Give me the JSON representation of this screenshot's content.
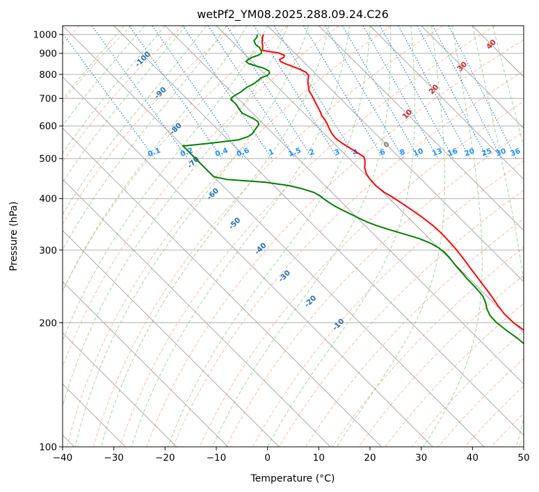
{
  "chart_data": {
    "type": "line",
    "title": "wetPf2_YM08.2025.288.09.24.C26",
    "xlabel": "Temperature (°C)",
    "ylabel": "Pressure (hPa)",
    "xlim": [
      -40,
      50
    ],
    "ylim": [
      1050,
      100
    ],
    "y_scale": "log",
    "grid": true,
    "x_ticks": [
      -40,
      -30,
      -20,
      -10,
      0,
      10,
      20,
      30,
      40,
      50
    ],
    "x_tick_labels": [
      "−40",
      "−30",
      "−20",
      "−10",
      "0",
      "10",
      "20",
      "30",
      "40",
      "50"
    ],
    "y_ticks": [
      100,
      200,
      300,
      400,
      500,
      600,
      700,
      800,
      900,
      1000
    ],
    "y_tick_labels": [
      "100",
      "200",
      "300",
      "400",
      "500",
      "600",
      "700",
      "800",
      "900",
      "1000"
    ],
    "series": [
      {
        "color": "#ff0000",
        "pressure": [
          1000,
          985,
          960,
          935,
          915,
          902,
          890,
          880,
          870,
          860,
          850,
          838,
          825,
          810,
          795,
          785,
          770,
          750,
          730,
          710,
          690,
          670,
          650,
          635,
          620,
          605,
          590,
          575,
          560,
          545,
          530,
          515,
          505,
          495,
          485,
          475,
          460,
          445,
          430,
          415,
          405,
          390,
          375,
          360,
          345,
          330,
          315,
          300,
          285,
          270,
          255,
          240,
          230,
          220,
          210,
          200,
          190,
          180,
          170,
          163,
          157,
          150,
          140,
          130,
          120,
          110,
          100
        ],
        "temperature": [
          -2.5,
          -3.2,
          -4.2,
          -5.0,
          -5.8,
          -3.2,
          -2.5,
          -3.0,
          -4.2,
          -4.5,
          -4.0,
          -3.2,
          -2.3,
          -1.6,
          -1.7,
          -2.2,
          -3.0,
          -3.8,
          -4.6,
          -5.0,
          -5.5,
          -6.0,
          -6.5,
          -7.0,
          -7.2,
          -7.6,
          -8.1,
          -8.5,
          -8.7,
          -8.4,
          -7.8,
          -7.2,
          -6.8,
          -7.3,
          -8.0,
          -8.8,
          -9.6,
          -10.0,
          -10.1,
          -9.8,
          -9.2,
          -8.5,
          -7.8,
          -7.2,
          -6.8,
          -6.6,
          -6.7,
          -6.9,
          -7.3,
          -7.8,
          -8.3,
          -8.8,
          -9.2,
          -9.7,
          -10.1,
          -10.0,
          -9.3,
          -8.0,
          -6.0,
          -4.6,
          -4.1,
          -3.8,
          -3.6,
          -3.4,
          -3.0,
          -2.5,
          -2.3
        ]
      },
      {
        "color": "#008000",
        "pressure": [
          1000,
          985,
          965,
          945,
          930,
          920,
          910,
          900,
          890,
          880,
          870,
          860,
          850,
          840,
          828,
          815,
          805,
          795,
          785,
          775,
          765,
          755,
          745,
          735,
          725,
          715,
          705,
          695,
          685,
          675,
          665,
          655,
          645,
          635,
          625,
          615,
          605,
          595,
          585,
          575,
          565,
          555,
          545,
          537,
          537,
          526,
          518,
          508,
          498,
          488,
          480,
          470,
          460,
          455,
          452,
          445,
          438,
          430,
          422,
          414,
          406,
          398,
          390,
          382,
          374,
          366,
          358,
          350,
          343,
          336,
          328,
          320,
          312,
          304,
          296,
          288,
          280,
          272,
          264,
          256,
          248,
          240,
          232,
          224,
          216,
          208,
          200,
          192,
          184,
          176,
          168,
          160,
          152,
          145,
          138,
          131,
          124,
          117,
          110,
          104,
          100
        ],
        "temperature": [
          -3.7,
          -4.3,
          -5.6,
          -6.0,
          -5.8,
          -6.0,
          -6.2,
          -6.6,
          -7.6,
          -9.2,
          -10.3,
          -11.2,
          -11.1,
          -10.2,
          -9.0,
          -8.6,
          -8.9,
          -9.8,
          -11.4,
          -12.4,
          -13.4,
          -14.6,
          -16.0,
          -17.1,
          -18.2,
          -19.5,
          -20.8,
          -21.6,
          -21.5,
          -21.5,
          -21.7,
          -21.9,
          -22.0,
          -21.5,
          -20.9,
          -20.6,
          -21.0,
          -22.0,
          -23.0,
          -24.0,
          -25.5,
          -28.0,
          -34.0,
          -39.5,
          -40.0,
          -40.0,
          -40.0,
          -40.0,
          -40.0,
          -40.0,
          -40.0,
          -40.0,
          -40.0,
          -40.0,
          -40.0,
          -38.0,
          -31.0,
          -27.0,
          -25.0,
          -23.5,
          -23.0,
          -22.8,
          -22.5,
          -22.0,
          -21.3,
          -20.5,
          -19.7,
          -18.8,
          -17.6,
          -16.0,
          -14.0,
          -12.0,
          -10.7,
          -10.0,
          -9.7,
          -9.8,
          -10.0,
          -10.2,
          -10.3,
          -10.5,
          -10.5,
          -10.6,
          -10.8,
          -11.5,
          -12.5,
          -13.2,
          -13.3,
          -12.9,
          -12.3,
          -12.0,
          -11.8,
          -11.6,
          -11.2,
          -10.3,
          -9.4,
          -8.6,
          -7.8,
          -7.1,
          -6.4,
          -5.5,
          -4.9
        ]
      }
    ],
    "isotherm_labels": [
      "-100",
      "-90",
      "-80",
      "-70",
      "-60",
      "-50",
      "-40",
      "-30",
      "-20",
      "-10"
    ],
    "isotherm_label_color": "#2a6fa8",
    "isotherm_zero_label": "0",
    "isotherm_zero_label_color": "#808080",
    "isotherm_warm_labels": [
      "10",
      "20",
      "30",
      "40"
    ],
    "isotherm_warm_label_color": "#d02020",
    "mixing_ratio_labels": [
      "0.1",
      "0.2",
      "0.4",
      "0.6",
      "1",
      "1.5",
      "2",
      "3",
      "4",
      "6",
      "8",
      "10",
      "13",
      "16",
      "20",
      "25",
      "30",
      "36"
    ],
    "mixing_ratio_label_color": "#1e90ff",
    "colors": {
      "grid": "#b0b0b0",
      "skew_isotherm": "#a0a0a0",
      "dry_adiabat": "#f4a582",
      "moist_adiabat": "#7fbf7b",
      "mixing_ratio": "#1f77b4",
      "temperature": "#ff0000",
      "dewpoint": "#008000"
    }
  }
}
